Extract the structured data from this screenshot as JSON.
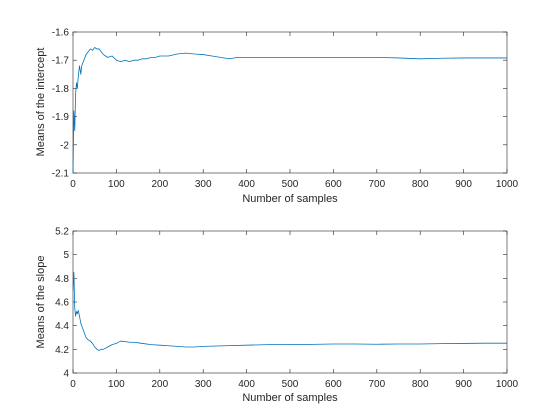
{
  "chart_data": [
    {
      "type": "line",
      "title": "",
      "xlabel": "Number of samples",
      "ylabel": "Means of the intercept",
      "xlim": [
        0,
        1000
      ],
      "ylim": [
        -2.1,
        -1.6
      ],
      "xticks": [
        "0",
        "100",
        "200",
        "300",
        "400",
        "500",
        "600",
        "700",
        "800",
        "900",
        "1000"
      ],
      "yticks": [
        "-2.1",
        "-2",
        "-1.9",
        "-1.8",
        "-1.7",
        "-1.6"
      ],
      "grid": false,
      "legend": "none",
      "series": [
        {
          "color": "#0072BD",
          "x": [
            0,
            2,
            4,
            6,
            8,
            10,
            12,
            15,
            18,
            20,
            25,
            30,
            35,
            40,
            45,
            50,
            55,
            60,
            65,
            70,
            80,
            90,
            100,
            110,
            120,
            130,
            140,
            150,
            160,
            170,
            180,
            190,
            200,
            220,
            240,
            260,
            280,
            300,
            320,
            340,
            360,
            380,
            400,
            450,
            500,
            550,
            600,
            650,
            700,
            750,
            800,
            850,
            900,
            950,
            1000
          ],
          "y": [
            -2.1,
            -1.88,
            -1.95,
            -1.82,
            -1.78,
            -1.8,
            -1.76,
            -1.72,
            -1.75,
            -1.72,
            -1.7,
            -1.68,
            -1.67,
            -1.66,
            -1.665,
            -1.655,
            -1.66,
            -1.66,
            -1.67,
            -1.68,
            -1.69,
            -1.685,
            -1.7,
            -1.705,
            -1.7,
            -1.705,
            -1.7,
            -1.7,
            -1.695,
            -1.695,
            -1.69,
            -1.69,
            -1.685,
            -1.685,
            -1.678,
            -1.675,
            -1.678,
            -1.68,
            -1.685,
            -1.69,
            -1.695,
            -1.69,
            -1.69,
            -1.69,
            -1.69,
            -1.69,
            -1.69,
            -1.69,
            -1.69,
            -1.692,
            -1.695,
            -1.693,
            -1.692,
            -1.692,
            -1.692
          ]
        }
      ]
    },
    {
      "type": "line",
      "title": "",
      "xlabel": "Number of samples",
      "ylabel": "Means of the slope",
      "xlim": [
        0,
        1000
      ],
      "ylim": [
        4,
        5.2
      ],
      "xticks": [
        "0",
        "100",
        "200",
        "300",
        "400",
        "500",
        "600",
        "700",
        "800",
        "900",
        "1000"
      ],
      "yticks": [
        "4",
        "4.2",
        "4.4",
        "4.6",
        "4.8",
        "5",
        "5.2"
      ],
      "grid": false,
      "legend": "none",
      "series": [
        {
          "color": "#0072BD",
          "x": [
            0,
            2,
            4,
            6,
            8,
            10,
            12,
            15,
            18,
            20,
            25,
            30,
            35,
            40,
            45,
            50,
            55,
            60,
            65,
            70,
            80,
            90,
            100,
            110,
            120,
            130,
            140,
            150,
            160,
            180,
            200,
            220,
            240,
            260,
            280,
            300,
            350,
            400,
            450,
            500,
            550,
            600,
            650,
            700,
            750,
            800,
            850,
            900,
            950,
            1000
          ],
          "y": [
            4.7,
            4.85,
            4.55,
            4.48,
            4.52,
            4.5,
            4.53,
            4.48,
            4.42,
            4.4,
            4.35,
            4.3,
            4.28,
            4.27,
            4.25,
            4.22,
            4.2,
            4.19,
            4.2,
            4.2,
            4.22,
            4.24,
            4.25,
            4.27,
            4.265,
            4.26,
            4.26,
            4.255,
            4.25,
            4.24,
            4.235,
            4.23,
            4.225,
            4.22,
            4.22,
            4.225,
            4.23,
            4.235,
            4.24,
            4.24,
            4.242,
            4.245,
            4.245,
            4.243,
            4.245,
            4.245,
            4.248,
            4.25,
            4.252,
            4.252
          ]
        }
      ]
    }
  ]
}
